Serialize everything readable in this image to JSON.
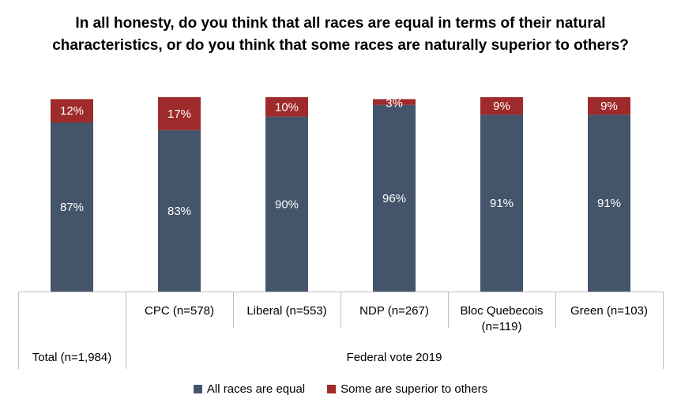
{
  "chart_data": {
    "type": "bar",
    "stacked": true,
    "title": "In all honesty, do you think that all races are equal in terms of their natural characteristics, or do you think that some races are naturally superior to others?",
    "categories": [
      "Total (n=1,984)",
      "CPC (n=578)",
      "Liberal (n=553)",
      "NDP (n=267)",
      "Bloc Quebecois (n=119)",
      "Green (n=103)"
    ],
    "group_label": "Federal vote 2019",
    "series": [
      {
        "name": "All races are equal",
        "color": "#44546A",
        "values": [
          87,
          83,
          90,
          96,
          91,
          91
        ],
        "labels": [
          "87%",
          "83%",
          "90%",
          "96%",
          "91%",
          "91%"
        ]
      },
      {
        "name": "Some are superior to others",
        "color": "#9E2A2B",
        "values": [
          12,
          17,
          10,
          3,
          9,
          9
        ],
        "labels": [
          "12%",
          "17%",
          "10%",
          "3%",
          "9%",
          "9%"
        ]
      }
    ],
    "ylim": [
      0,
      100
    ],
    "grid": false,
    "legend_position": "bottom"
  }
}
